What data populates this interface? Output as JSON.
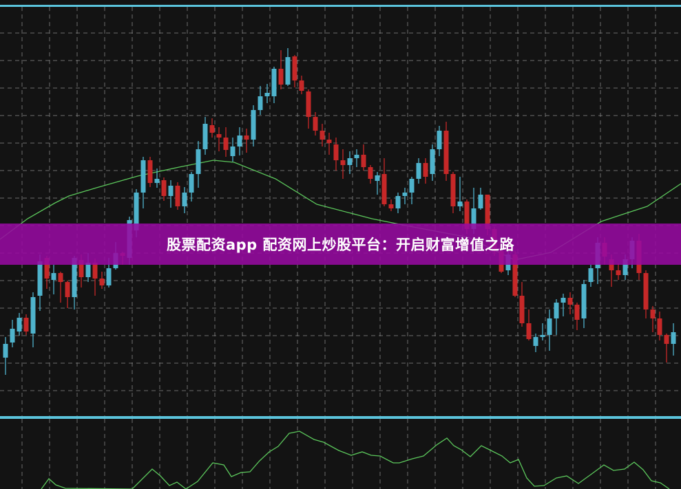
{
  "banner": {
    "text": "股票配资app 配资网上炒股平台：开启财富增值之路"
  },
  "colors": {
    "background": "#131313",
    "up": "#4fb3cc",
    "down": "#c62828",
    "ma": "#5cc85c",
    "oscillator": "#5cc85c",
    "separator": "#5bc4dc",
    "grid": "#8a8a8a",
    "banner": "#960aa0"
  },
  "chart_data": [
    {
      "type": "candlestick",
      "title": "",
      "xlabel": "",
      "ylabel": "",
      "ylim": [
        -7,
        592
      ],
      "grid": true,
      "legend": "none",
      "candles_ohlc_fields": [
        "open",
        "close",
        "high",
        "low"
      ],
      "candles": [
        [
          80,
          100,
          110,
          55
        ],
        [
          102,
          122,
          135,
          95
        ],
        [
          118,
          138,
          145,
          112
        ],
        [
          138,
          118,
          143,
          113
        ],
        [
          115,
          168,
          175,
          95
        ],
        [
          170,
          220,
          230,
          148
        ],
        [
          225,
          195,
          228,
          180
        ],
        [
          193,
          203,
          215,
          172
        ],
        [
          203,
          190,
          205,
          160
        ],
        [
          190,
          168,
          192,
          152
        ],
        [
          168,
          225,
          228,
          150
        ],
        [
          222,
          197,
          230,
          182
        ],
        [
          197,
          218,
          232,
          190
        ],
        [
          218,
          195,
          224,
          170
        ],
        [
          195,
          185,
          205,
          180
        ],
        [
          185,
          210,
          225,
          182
        ],
        [
          210,
          232,
          248,
          208
        ],
        [
          232,
          228,
          234,
          215
        ],
        [
          225,
          280,
          285,
          215
        ],
        [
          265,
          320,
          325,
          255
        ],
        [
          320,
          367,
          372,
          297
        ],
        [
          367,
          334,
          372,
          328
        ],
        [
          334,
          340,
          355,
          327
        ],
        [
          338,
          315,
          342,
          308
        ],
        [
          315,
          330,
          338,
          298
        ],
        [
          330,
          300,
          335,
          295
        ],
        [
          300,
          320,
          328,
          290
        ],
        [
          320,
          347,
          350,
          307
        ],
        [
          347,
          383,
          395,
          327
        ],
        [
          383,
          420,
          430,
          375
        ],
        [
          418,
          407,
          428,
          400
        ],
        [
          405,
          400,
          415,
          380
        ],
        [
          400,
          382,
          415,
          372
        ],
        [
          373,
          387,
          400,
          365
        ],
        [
          387,
          403,
          415,
          374
        ],
        [
          403,
          397,
          413,
          378
        ],
        [
          397,
          440,
          447,
          387
        ],
        [
          440,
          460,
          475,
          433
        ],
        [
          460,
          465,
          478,
          450
        ],
        [
          460,
          500,
          503,
          450
        ],
        [
          500,
          477,
          527,
          470
        ],
        [
          477,
          517,
          530,
          475
        ],
        [
          518,
          483,
          520,
          473
        ],
        [
          483,
          468,
          490,
          463
        ],
        [
          467,
          430,
          470,
          413
        ],
        [
          430,
          410,
          437,
          403
        ],
        [
          410,
          397,
          420,
          387
        ],
        [
          397,
          392,
          407,
          375
        ],
        [
          390,
          367,
          400,
          352
        ],
        [
          367,
          360,
          383,
          340
        ],
        [
          360,
          370,
          380,
          347
        ],
        [
          370,
          375,
          383,
          357
        ],
        [
          375,
          357,
          390,
          352
        ],
        [
          357,
          340,
          360,
          333
        ],
        [
          337,
          345,
          350,
          317
        ],
        [
          347,
          303,
          370,
          300
        ],
        [
          303,
          297,
          310,
          293
        ],
        [
          297,
          315,
          320,
          290
        ],
        [
          315,
          320,
          327,
          303
        ],
        [
          320,
          340,
          343,
          303
        ],
        [
          340,
          363,
          370,
          333
        ],
        [
          363,
          343,
          370,
          333
        ],
        [
          347,
          383,
          390,
          337
        ],
        [
          383,
          410,
          417,
          373
        ],
        [
          410,
          347,
          423,
          337
        ],
        [
          347,
          300,
          350,
          290
        ],
        [
          300,
          307,
          343,
          293
        ],
        [
          307,
          267,
          310,
          260
        ],
        [
          267,
          297,
          327,
          260
        ],
        [
          297,
          317,
          327,
          295
        ],
        [
          317,
          267,
          317,
          258
        ],
        [
          267,
          235,
          270,
          228
        ],
        [
          235,
          205,
          240,
          203
        ],
        [
          207,
          230,
          235,
          200
        ],
        [
          230,
          170,
          235,
          168
        ],
        [
          170,
          130,
          190,
          125
        ],
        [
          130,
          107,
          150,
          105
        ],
        [
          97,
          110,
          115,
          88
        ],
        [
          110,
          113,
          130,
          105
        ],
        [
          113,
          137,
          150,
          90
        ],
        [
          137,
          160,
          165,
          113
        ],
        [
          160,
          167,
          173,
          140
        ],
        [
          167,
          157,
          175,
          143
        ],
        [
          157,
          135,
          160,
          120
        ],
        [
          137,
          187,
          193,
          123
        ],
        [
          190,
          210,
          215,
          183
        ],
        [
          210,
          247,
          255,
          187
        ],
        [
          247,
          227,
          255,
          215
        ],
        [
          223,
          207,
          230,
          183
        ],
        [
          207,
          200,
          217,
          193
        ],
        [
          200,
          223,
          230,
          193
        ],
        [
          223,
          250,
          255,
          210
        ],
        [
          250,
          203,
          260,
          193
        ],
        [
          203,
          150,
          207,
          137
        ],
        [
          150,
          137,
          155,
          117
        ],
        [
          137,
          113,
          147,
          105
        ],
        [
          113,
          100,
          115,
          73
        ],
        [
          100,
          117,
          130,
          83
        ]
      ],
      "moving_average": [
        [
          -0.8,
          252
        ],
        [
          3.2,
          282
        ],
        [
          7.2,
          305
        ],
        [
          9.2,
          315
        ],
        [
          13.2,
          327
        ],
        [
          19.2,
          344
        ],
        [
          25.2,
          357
        ],
        [
          30.2,
          367
        ],
        [
          33.2,
          364
        ],
        [
          39.2,
          340
        ],
        [
          45.2,
          303
        ],
        [
          53.2,
          282
        ],
        [
          59.2,
          270
        ],
        [
          67.2,
          255
        ],
        [
          73.9,
          222
        ],
        [
          79.2,
          233
        ],
        [
          86.5,
          278
        ],
        [
          93.2,
          300
        ],
        [
          98.1,
          333
        ]
      ]
    },
    {
      "type": "line",
      "title": "",
      "xlabel": "",
      "ylabel": "",
      "ylim": [
        0,
        100
      ],
      "grid": true,
      "legend": "none",
      "values": [
        [
          5.2,
          0
        ],
        [
          6.3,
          15
        ],
        [
          7.3,
          6
        ],
        [
          8.7,
          1
        ],
        [
          18.4,
          0
        ],
        [
          20,
          16
        ],
        [
          21.3,
          29
        ],
        [
          22.5,
          19
        ],
        [
          23.8,
          5
        ],
        [
          24.9,
          10
        ],
        [
          26.2,
          0
        ],
        [
          27.9,
          11
        ],
        [
          30.1,
          38
        ],
        [
          31.7,
          35
        ],
        [
          32.8,
          18
        ],
        [
          34.2,
          24
        ],
        [
          35.5,
          25
        ],
        [
          36.9,
          41
        ],
        [
          38.3,
          54
        ],
        [
          39.6,
          62
        ],
        [
          41.2,
          81
        ],
        [
          42.7,
          84
        ],
        [
          44.8,
          72
        ],
        [
          46.2,
          68
        ],
        [
          48.4,
          56
        ],
        [
          50.2,
          49
        ],
        [
          51.8,
          54
        ],
        [
          53.1,
          49
        ],
        [
          54.4,
          48
        ],
        [
          56.3,
          38
        ],
        [
          57.2,
          38
        ],
        [
          59.1,
          44
        ],
        [
          60.7,
          48
        ],
        [
          62.6,
          64
        ],
        [
          64.1,
          74
        ],
        [
          65.1,
          63
        ],
        [
          66.2,
          57
        ],
        [
          67.5,
          47
        ],
        [
          69.1,
          63
        ],
        [
          70.5,
          56
        ],
        [
          72.1,
          48
        ],
        [
          73.3,
          38
        ],
        [
          74.5,
          43
        ],
        [
          75.7,
          16
        ],
        [
          76.8,
          4
        ],
        [
          78.2,
          5
        ],
        [
          80,
          16
        ],
        [
          81.5,
          19
        ],
        [
          83.2,
          8
        ],
        [
          85,
          21
        ],
        [
          86.9,
          35
        ],
        [
          88.3,
          27
        ],
        [
          89.9,
          29
        ],
        [
          91.3,
          39
        ],
        [
          92.6,
          28
        ],
        [
          93.8,
          12
        ],
        [
          95.1,
          9
        ],
        [
          96.4,
          0
        ]
      ]
    }
  ]
}
